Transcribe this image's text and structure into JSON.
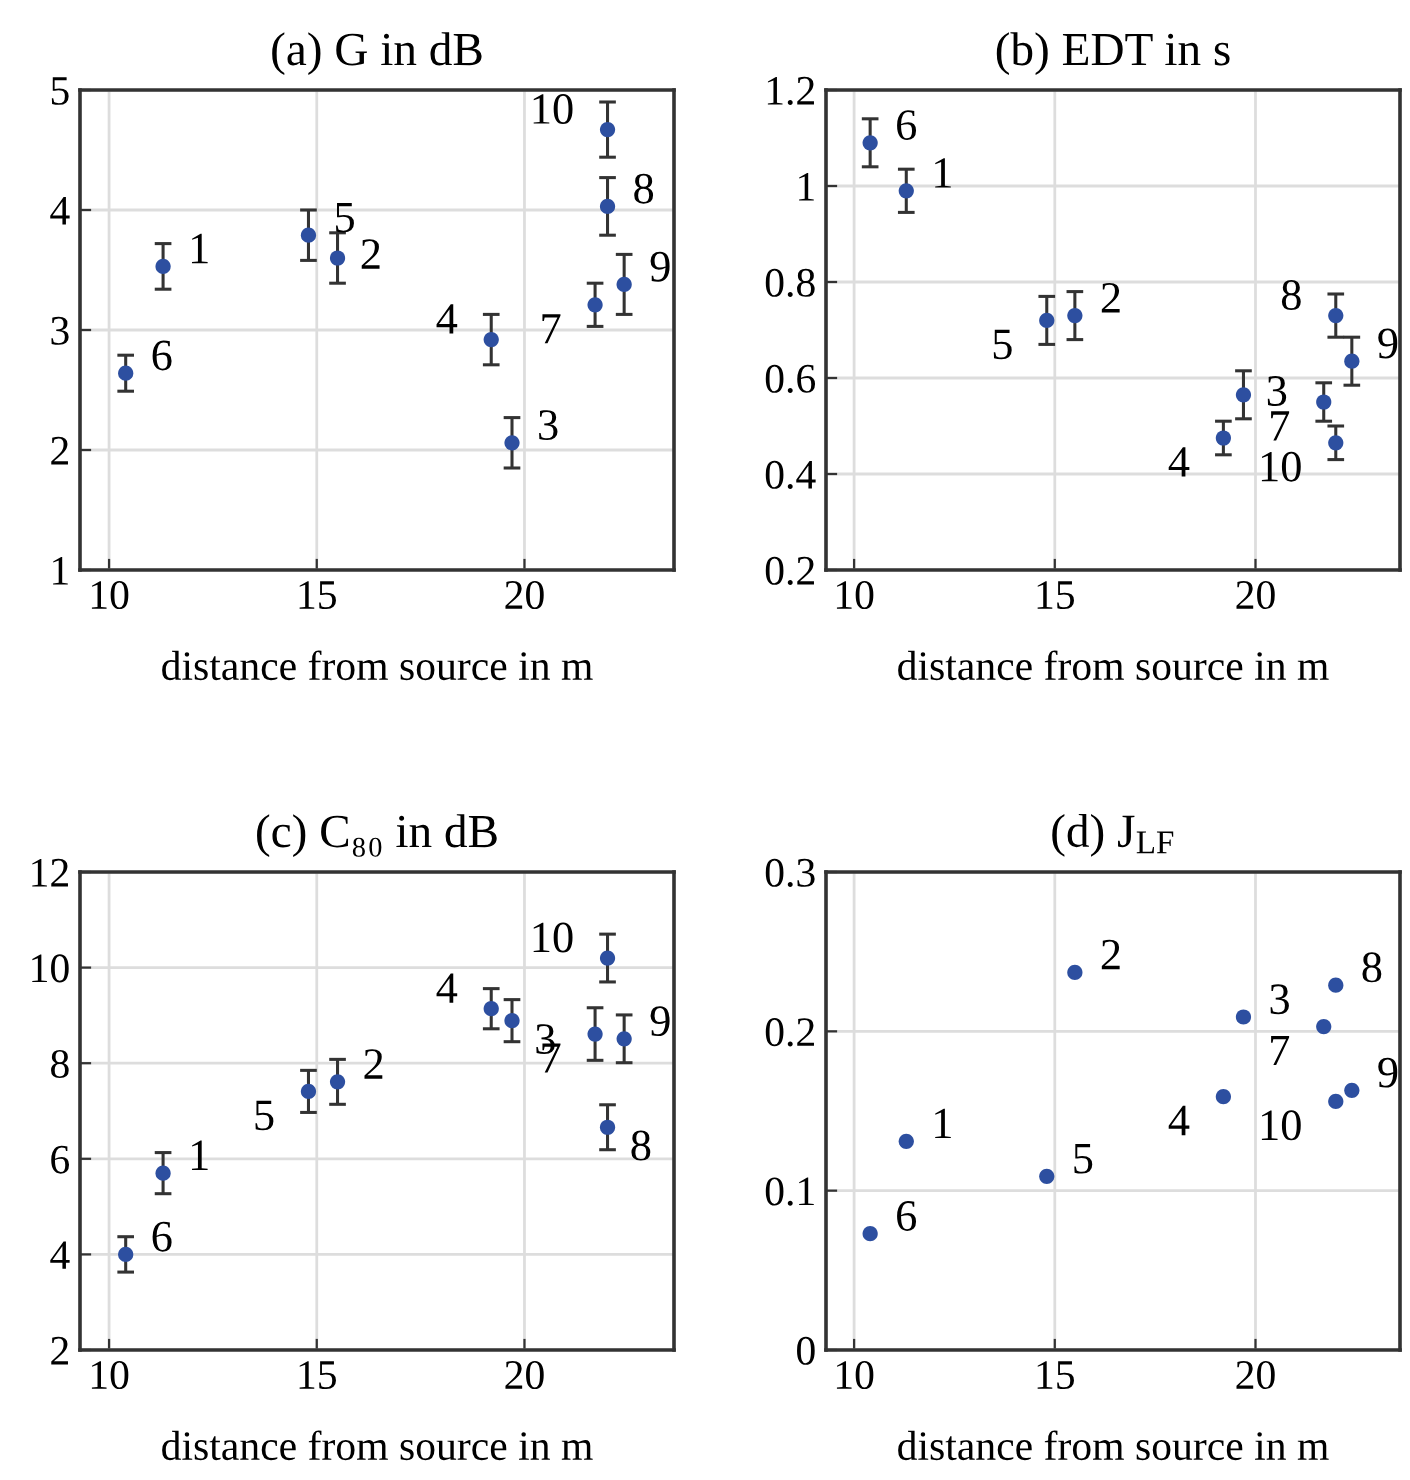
{
  "chart_data": [
    {
      "type": "scatter",
      "title": "(a) G in dB",
      "xlabel": "distance from source in m",
      "x": [
        11.3,
        15.5,
        19.7,
        19.2,
        14.8,
        10.4,
        21.7,
        22.0,
        22.4,
        22.0
      ],
      "xlim": [
        9.3,
        23.6
      ],
      "xticks": [
        10,
        15,
        20
      ],
      "ylim": [
        1,
        5
      ],
      "yticks": [
        1,
        2,
        3,
        4,
        5
      ],
      "grid": true,
      "marker": "circle",
      "series": [
        {
          "color": "#2d4fa0",
          "values": [
            3.53,
            3.6,
            2.06,
            2.92,
            3.79,
            2.64,
            3.21,
            4.03,
            3.38,
            4.67
          ],
          "errors": [
            0.19,
            0.21,
            0.21,
            0.21,
            0.21,
            0.15,
            0.18,
            0.24,
            0.25,
            0.23
          ]
        }
      ],
      "annotations": [
        {
          "text": "1",
          "x": 11.3,
          "y": 3.53
        },
        {
          "text": "2",
          "x": 15.5,
          "y": 3.6
        },
        {
          "text": "3",
          "x": 19.7,
          "y": 2.06
        },
        {
          "text": "4",
          "x": 19.2,
          "y": 2.92
        },
        {
          "text": "5",
          "x": 14.8,
          "y": 3.79
        },
        {
          "text": "6",
          "x": 10.4,
          "y": 2.64
        },
        {
          "text": "7",
          "x": 21.7,
          "y": 3.21
        },
        {
          "text": "8",
          "x": 22.0,
          "y": 4.03
        },
        {
          "text": "9",
          "x": 22.4,
          "y": 3.38
        },
        {
          "text": "10",
          "x": 22.0,
          "y": 4.67
        }
      ]
    },
    {
      "type": "scatter",
      "title": "(b) EDT in s",
      "xlabel": "distance from source in m",
      "x": [
        11.3,
        15.5,
        19.7,
        19.2,
        14.8,
        10.4,
        21.7,
        22.0,
        22.4,
        22.0
      ],
      "xlim": [
        9.3,
        23.6
      ],
      "xticks": [
        10,
        15,
        20
      ],
      "ylim": [
        0.2,
        1.2
      ],
      "yticks": [
        0.2,
        0.4,
        0.6,
        0.8,
        1,
        1.2
      ],
      "grid": true,
      "marker": "circle",
      "series": [
        {
          "color": "#2d4fa0",
          "values": [
            0.99,
            0.73,
            0.565,
            0.475,
            0.72,
            1.09,
            0.55,
            0.73,
            0.635,
            0.465
          ],
          "errors": [
            0.045,
            0.05,
            0.05,
            0.035,
            0.05,
            0.05,
            0.04,
            0.045,
            0.05,
            0.035
          ]
        }
      ],
      "annotations": [
        {
          "text": "1",
          "x": 11.3,
          "y": 0.99
        },
        {
          "text": "2",
          "x": 15.5,
          "y": 0.73
        },
        {
          "text": "3",
          "x": 19.7,
          "y": 0.565
        },
        {
          "text": "4",
          "x": 19.2,
          "y": 0.475
        },
        {
          "text": "5",
          "x": 14.8,
          "y": 0.72
        },
        {
          "text": "6",
          "x": 10.4,
          "y": 1.09
        },
        {
          "text": "7",
          "x": 21.7,
          "y": 0.55
        },
        {
          "text": "8",
          "x": 22.0,
          "y": 0.73
        },
        {
          "text": "9",
          "x": 22.4,
          "y": 0.635
        },
        {
          "text": "10",
          "x": 22.0,
          "y": 0.465
        }
      ]
    },
    {
      "type": "scatter",
      "title": "(c) C₈₀ in dB",
      "xlabel": "distance from source in m",
      "x": [
        11.3,
        15.5,
        19.7,
        19.2,
        14.8,
        10.4,
        21.7,
        22.0,
        22.4,
        22.0
      ],
      "xlim": [
        9.3,
        23.6
      ],
      "xticks": [
        10,
        15,
        20
      ],
      "ylim": [
        2,
        12
      ],
      "yticks": [
        2,
        4,
        6,
        8,
        10,
        12
      ],
      "grid": true,
      "marker": "circle",
      "series": [
        {
          "color": "#2d4fa0",
          "values": [
            5.7,
            7.61,
            8.89,
            9.14,
            7.41,
            4.0,
            8.61,
            6.66,
            8.51,
            10.2
          ],
          "errors": [
            0.43,
            0.47,
            0.44,
            0.42,
            0.44,
            0.37,
            0.55,
            0.47,
            0.5,
            0.5
          ]
        }
      ],
      "annotations": [
        {
          "text": "1",
          "x": 11.3,
          "y": 5.7
        },
        {
          "text": "2",
          "x": 15.5,
          "y": 7.61
        },
        {
          "text": "3",
          "x": 19.7,
          "y": 8.89
        },
        {
          "text": "4",
          "x": 19.2,
          "y": 9.14
        },
        {
          "text": "5",
          "x": 14.8,
          "y": 7.41
        },
        {
          "text": "6",
          "x": 10.4,
          "y": 4.0
        },
        {
          "text": "7",
          "x": 21.7,
          "y": 8.61
        },
        {
          "text": "8",
          "x": 22.0,
          "y": 6.66
        },
        {
          "text": "9",
          "x": 22.4,
          "y": 8.51
        },
        {
          "text": "10",
          "x": 22.0,
          "y": 10.2
        }
      ]
    },
    {
      "type": "scatter",
      "title": "(d) J$_{LF}$",
      "xlabel": "distance from source in m",
      "x": [
        11.3,
        15.5,
        19.7,
        19.2,
        14.8,
        10.4,
        21.7,
        22.0,
        22.4,
        22.0
      ],
      "xlim": [
        9.3,
        23.6
      ],
      "xticks": [
        10,
        15,
        20
      ],
      "ylim": [
        0,
        0.3
      ],
      "yticks": [
        0,
        0.1,
        0.2,
        0.3
      ],
      "grid": true,
      "marker": "circle",
      "series": [
        {
          "color": "#2d4fa0",
          "values": [
            0.131,
            0.237,
            0.209,
            0.159,
            0.109,
            0.073,
            0.203,
            0.229,
            0.163,
            0.156
          ]
        }
      ],
      "annotations": [
        {
          "text": "1",
          "x": 11.3,
          "y": 0.131
        },
        {
          "text": "2",
          "x": 15.5,
          "y": 0.237
        },
        {
          "text": "3",
          "x": 19.7,
          "y": 0.209
        },
        {
          "text": "4",
          "x": 19.2,
          "y": 0.159
        },
        {
          "text": "5",
          "x": 14.8,
          "y": 0.109
        },
        {
          "text": "6",
          "x": 10.4,
          "y": 0.073
        },
        {
          "text": "7",
          "x": 21.7,
          "y": 0.203
        },
        {
          "text": "8",
          "x": 22.0,
          "y": 0.229
        },
        {
          "text": "9",
          "x": 22.4,
          "y": 0.163
        },
        {
          "text": "10",
          "x": 22.0,
          "y": 0.156
        }
      ]
    }
  ]
}
